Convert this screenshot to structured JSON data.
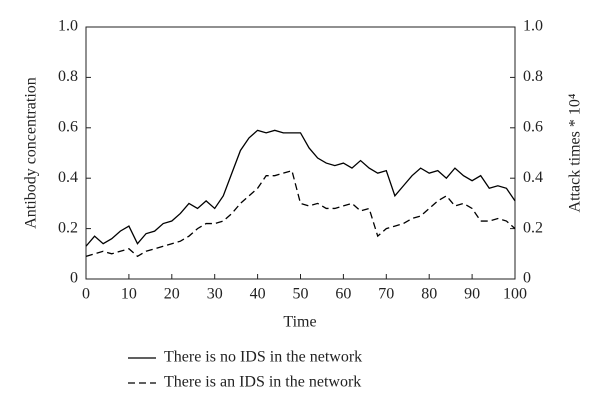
{
  "chart_data": {
    "type": "line",
    "xlabel": "Time",
    "ylabel": "Antibody concentration",
    "y2label": "Attack times * 10⁴",
    "x": [
      0,
      2,
      4,
      6,
      8,
      10,
      12,
      14,
      16,
      18,
      20,
      22,
      24,
      26,
      28,
      30,
      32,
      34,
      36,
      38,
      40,
      42,
      44,
      46,
      48,
      50,
      52,
      54,
      56,
      58,
      60,
      62,
      64,
      66,
      68,
      70,
      72,
      74,
      76,
      78,
      80,
      82,
      84,
      86,
      88,
      90,
      92,
      94,
      96,
      98,
      100
    ],
    "series": [
      {
        "name": "There is no IDS in the network",
        "color": "#000000",
        "linestyle": "solid",
        "values": [
          0.13,
          0.17,
          0.14,
          0.16,
          0.19,
          0.21,
          0.14,
          0.18,
          0.19,
          0.22,
          0.23,
          0.26,
          0.3,
          0.28,
          0.31,
          0.28,
          0.33,
          0.42,
          0.51,
          0.56,
          0.59,
          0.58,
          0.59,
          0.58,
          0.58,
          0.58,
          0.52,
          0.48,
          0.46,
          0.45,
          0.46,
          0.44,
          0.47,
          0.44,
          0.42,
          0.43,
          0.33,
          0.37,
          0.41,
          0.44,
          0.42,
          0.43,
          0.4,
          0.44,
          0.41,
          0.39,
          0.41,
          0.36,
          0.37,
          0.36,
          0.31
        ]
      },
      {
        "name": "There is an IDS in the network",
        "color": "#000000",
        "linestyle": "dashed",
        "values": [
          0.09,
          0.1,
          0.11,
          0.1,
          0.11,
          0.12,
          0.09,
          0.11,
          0.12,
          0.13,
          0.14,
          0.15,
          0.17,
          0.2,
          0.22,
          0.22,
          0.23,
          0.26,
          0.3,
          0.33,
          0.36,
          0.41,
          0.41,
          0.42,
          0.43,
          0.3,
          0.29,
          0.3,
          0.28,
          0.28,
          0.29,
          0.3,
          0.27,
          0.28,
          0.17,
          0.2,
          0.21,
          0.22,
          0.24,
          0.25,
          0.28,
          0.31,
          0.33,
          0.29,
          0.3,
          0.28,
          0.23,
          0.23,
          0.24,
          0.23,
          0.2
        ]
      }
    ],
    "xlim": [
      0,
      100
    ],
    "xticks": [
      0,
      10,
      20,
      30,
      40,
      50,
      60,
      70,
      80,
      90,
      100
    ],
    "ylim": [
      0,
      1
    ],
    "yticks": [
      0,
      0.2,
      0.4,
      0.6,
      0.8,
      {
        "value": 1,
        "label": "1.0"
      }
    ],
    "y2lim": [
      0,
      1
    ],
    "y2ticks": [
      0,
      0.2,
      0.4,
      0.6,
      0.8,
      {
        "value": 1,
        "label": "1.0"
      }
    ]
  }
}
